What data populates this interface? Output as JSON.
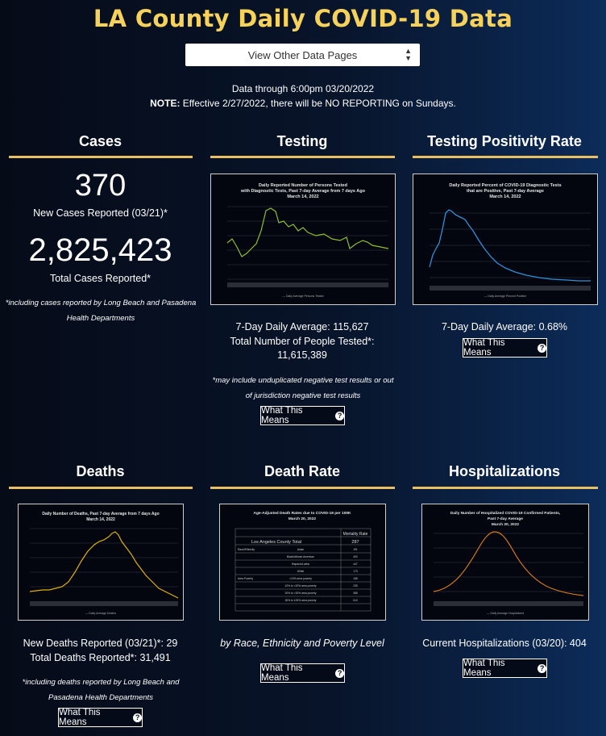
{
  "header": {
    "title": "LA County Daily COVID-19 Data",
    "dropdown_label": "View Other Data Pages",
    "data_through": "Data through 6:00pm 03/20/2022",
    "note_bold": "NOTE:",
    "note_text": " Effective 2/27/2022, there will be NO REPORTING on Sundays."
  },
  "colors": {
    "accent": "#f7d25a",
    "rule": "#e8c062",
    "testing_line": "#8fbf2a",
    "positivity_line": "#2f8fd8",
    "deaths_line": "#e0b000",
    "hosp_line": "#d87a1a"
  },
  "cases": {
    "title": "Cases",
    "new_value": "370",
    "new_label": "New Cases Reported (03/21)*",
    "total_value": "2,825,423",
    "total_label": "Total Cases Reported*",
    "footnote_line1": "*including cases reported by Long Beach and Pasadena",
    "footnote_line2": "Health Departments"
  },
  "testing": {
    "title": "Testing",
    "chart_title_l1": "Daily Reported Number of Persons Tested",
    "chart_title_l2": "with Diagnostic Tests, Past 7-day Average from 7 days Ago",
    "chart_title_l3": "March 14, 2022",
    "avg_line": "7-Day Daily Average: 115,627",
    "total_line1": "Total Number of People Tested*:",
    "total_line2": "11,615,389",
    "footnote_line1": "*may include unduplicated negative test results or out",
    "footnote_line2": "of jurisdiction negative test results",
    "button": "What This Means"
  },
  "positivity": {
    "title": "Testing Positivity Rate",
    "chart_title_l1": "Daily Reported Percent of COVID-19 Diagnostic Tests",
    "chart_title_l2": "that are Positive, Past 7-day Average",
    "chart_title_l3": "March 14, 2022",
    "avg_line": "7-Day Daily Average: 0.68%",
    "button": "What This Means"
  },
  "deaths": {
    "title": "Deaths",
    "chart_title_l1": "Daily Number of Deaths, Past 7-day Average from 7 days Ago",
    "chart_title_l2": "March 14, 2022",
    "new_line": "New Deaths Reported (03/21)*: 29",
    "total_line": "Total Deaths Reported*: 31,491",
    "footnote_line1": "*including deaths reported by Long Beach and",
    "footnote_line2": "Pasadena Health Departments",
    "button": "What This Means"
  },
  "death_rate": {
    "title": "Death Rate",
    "chart_title_l1": "Age-Adjusted Death Rates due to COVID-19 per 100K",
    "chart_title_l2": "March 20, 2022",
    "table_header": "Mortality Rate",
    "total_label": "Los Angeles County Total",
    "total_value": "287",
    "rows": [
      {
        "group": "Race/Ethnicity",
        "label": "Asian",
        "value": "191"
      },
      {
        "group": "",
        "label": "Black/African American",
        "value": "400"
      },
      {
        "group": "",
        "label": "Hispanic/Latino",
        "value": "447"
      },
      {
        "group": "",
        "label": "White",
        "value": "173"
      },
      {
        "group": "Area Poverty",
        "label": "<10% area poverty",
        "value": "168"
      },
      {
        "group": "",
        "label": "10% to <20% area poverty",
        "value": "235"
      },
      {
        "group": "",
        "label": "20% to <30% area poverty",
        "value": "385"
      },
      {
        "group": "",
        "label": "30% to 100% area poverty",
        "value": "510"
      }
    ],
    "caption": "by Race, Ethnicity and Poverty Level",
    "button": "What This Means"
  },
  "hospitalizations": {
    "title": "Hospitalizations",
    "chart_title_l1": "Daily Number of Hospitalized COVID-19 Confirmed Patients,",
    "chart_title_l2": "Past 7-day Average",
    "chart_title_l3": "March 20, 2022",
    "current_line": "Current Hospitalizations (03/20): 404",
    "button": "What This Means"
  }
}
